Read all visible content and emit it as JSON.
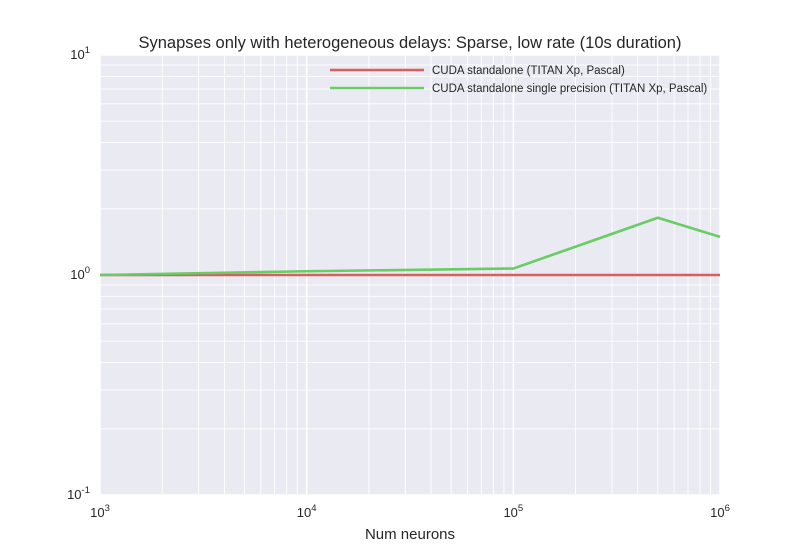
{
  "chart_data": {
    "type": "line",
    "title": "Synapses only with heterogeneous delays: Sparse, low rate (10s duration)",
    "xlabel": "Num neurons",
    "ylabel": "",
    "xscale": "log",
    "yscale": "log",
    "xlim": [
      1000,
      1000000
    ],
    "ylim": [
      0.1,
      10
    ],
    "grid": true,
    "legend_position": "top-right",
    "background_color": "#eaeaf2",
    "grid_color": "#ffffff",
    "x_ticks": [
      {
        "value": 1000,
        "base": "10",
        "exp": "3"
      },
      {
        "value": 10000,
        "base": "10",
        "exp": "4"
      },
      {
        "value": 100000,
        "base": "10",
        "exp": "5"
      },
      {
        "value": 1000000,
        "base": "10",
        "exp": "6"
      }
    ],
    "y_ticks": [
      {
        "value": 0.1,
        "base": "10",
        "exp": "-1"
      },
      {
        "value": 1,
        "base": "10",
        "exp": "0"
      },
      {
        "value": 10,
        "base": "10",
        "exp": "1"
      }
    ],
    "series": [
      {
        "name": "CUDA standalone (TITAN Xp, Pascal)",
        "color": "#d65f5f",
        "x": [
          1000,
          10000,
          100000,
          500000,
          1000000
        ],
        "y": [
          1.0,
          1.0,
          1.0,
          1.0,
          1.0
        ]
      },
      {
        "name": "CUDA standalone single precision (TITAN Xp, Pascal)",
        "color": "#6acc65",
        "x": [
          1000,
          10000,
          100000,
          500000,
          1000000
        ],
        "y": [
          1.0,
          1.04,
          1.07,
          1.82,
          1.49
        ]
      }
    ]
  }
}
